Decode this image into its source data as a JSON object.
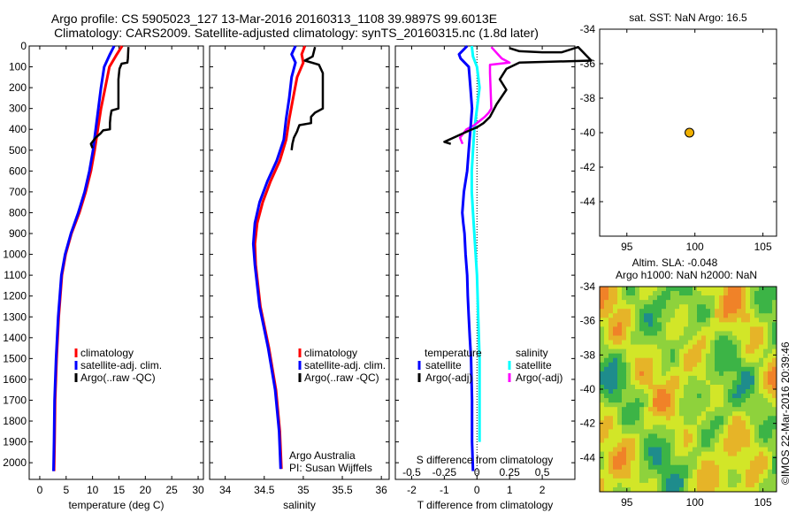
{
  "header": {
    "line1": "Argo profile: CS 5905023_127 13-Mar-2016 20160313_1108 39.9897S 99.6013E",
    "line2": "Climatology: CARS2009. Satellite-adjusted climatology: synTS_20160315.nc (1.8d later)"
  },
  "colors": {
    "climatology": "#ff0000",
    "satellite": "#0000ff",
    "argo": "#000000",
    "sal_satellite": "#00ffff",
    "sal_argo": "#ff00ff"
  },
  "chart_data": [
    {
      "type": "line",
      "xlabel": "temperature (deg C)",
      "xlim": [
        -2,
        31
      ],
      "xticks": [
        0,
        5,
        10,
        15,
        20,
        25,
        30
      ],
      "ylim": [
        2080,
        0
      ],
      "yticks": [
        0,
        100,
        200,
        300,
        400,
        500,
        600,
        700,
        800,
        900,
        1000,
        1100,
        1200,
        1300,
        1400,
        1500,
        1600,
        1700,
        1800,
        1900,
        2000
      ],
      "legend": [
        "climatology",
        "satellite-adj. clim.",
        "Argo(..raw -QC)"
      ],
      "series": [
        {
          "name": "climatology",
          "x": [
            15.6,
            14.6,
            13.2,
            12.4,
            11.6,
            11.0,
            10.4,
            9.7,
            8.7,
            7.5,
            6.0,
            4.9,
            4.2,
            3.6,
            3.2,
            2.9,
            2.8,
            2.7
          ],
          "y": [
            0,
            40,
            100,
            200,
            300,
            400,
            500,
            600,
            700,
            800,
            900,
            1000,
            1100,
            1300,
            1500,
            1700,
            1900,
            2040
          ]
        },
        {
          "name": "satellite-adj. clim.",
          "x": [
            14.1,
            13.3,
            12.2,
            11.6,
            11.1,
            10.6,
            10.1,
            9.4,
            8.5,
            7.3,
            5.9,
            4.8,
            4.1,
            3.5,
            3.1,
            2.8,
            2.7,
            2.6
          ],
          "y": [
            0,
            40,
            100,
            200,
            300,
            400,
            500,
            600,
            700,
            800,
            900,
            1000,
            1100,
            1300,
            1500,
            1700,
            1900,
            2040
          ]
        },
        {
          "name": "Argo(..raw -QC)",
          "x": [
            16.8,
            16.7,
            16.6,
            15.5,
            15.1,
            14.9,
            14.9,
            13.6,
            13.4,
            13.3,
            13.3,
            12.0,
            11.5,
            10.6,
            9.7,
            10.0
          ],
          "y": [
            5,
            60,
            80,
            85,
            110,
            160,
            300,
            310,
            340,
            370,
            400,
            405,
            420,
            440,
            470,
            490
          ]
        }
      ]
    },
    {
      "type": "line",
      "xlabel": "salinity",
      "xlim": [
        33.8,
        36.1
      ],
      "xticks": [
        34,
        34.5,
        35,
        35.5,
        36
      ],
      "xticklabels": [
        "34",
        "34.5",
        "35",
        "35.5",
        "36"
      ],
      "ylim": [
        2080,
        0
      ],
      "legend": [
        "climatology",
        "satellite-adj. clim.",
        "Argo(..raw -QC)"
      ],
      "annotation": [
        "Argo Australia",
        "PI: Susan Wijffels"
      ],
      "series": [
        {
          "name": "climatology",
          "x": [
            35.02,
            34.98,
            35.0,
            34.92,
            34.87,
            34.82,
            34.78,
            34.7,
            34.58,
            34.48,
            34.41,
            34.38,
            34.39,
            34.45,
            34.56,
            34.65,
            34.7,
            34.72
          ],
          "y": [
            0,
            40,
            80,
            150,
            250,
            350,
            450,
            550,
            650,
            750,
            850,
            950,
            1050,
            1250,
            1450,
            1650,
            1850,
            2030
          ]
        },
        {
          "name": "satellite-adj. clim.",
          "x": [
            34.9,
            34.85,
            34.9,
            34.85,
            34.82,
            34.78,
            34.75,
            34.66,
            34.54,
            34.44,
            34.38,
            34.36,
            34.38,
            34.44,
            34.55,
            34.64,
            34.69,
            34.71
          ],
          "y": [
            0,
            40,
            80,
            150,
            250,
            350,
            450,
            550,
            650,
            750,
            850,
            950,
            1050,
            1250,
            1450,
            1650,
            1850,
            2030
          ]
        },
        {
          "name": "Argo(..raw -QC)",
          "x": [
            35.15,
            35.12,
            35.02,
            35.2,
            35.25,
            35.25,
            35.15,
            35.1,
            35.1,
            34.95,
            34.93,
            34.92,
            34.88,
            34.86,
            34.85
          ],
          "y": [
            5,
            50,
            70,
            90,
            130,
            300,
            320,
            340,
            370,
            380,
            400,
            410,
            440,
            470,
            500
          ]
        }
      ]
    },
    {
      "type": "line",
      "xlabel": "T difference from climatology",
      "secondary_xlabel": "S difference from climatology",
      "xlim": [
        -2.5,
        3.0
      ],
      "xticks": [
        -2,
        -1,
        0,
        1,
        2
      ],
      "secondary_xticks": [
        -0.5,
        -0.25,
        0,
        0.25,
        0.5
      ],
      "secondary_xlim": [
        -0.625,
        0.75
      ],
      "ylim": [
        2080,
        0
      ],
      "legend_left": {
        "title": "temperature",
        "items": [
          "satellite",
          "Argo(-adj)"
        ]
      },
      "legend_right": {
        "title": "salinity",
        "items": [
          "satellite",
          "Argo(-adj)"
        ]
      },
      "series": [
        {
          "name": "temperature satellite",
          "x": [
            -0.3,
            -0.55,
            -0.5,
            -0.25,
            -0.2,
            -0.15,
            -0.2,
            -0.25,
            -0.3,
            -0.4,
            -0.45,
            -0.42,
            -0.38,
            -0.35,
            -0.3,
            -0.28,
            -0.25,
            -0.22,
            -0.18,
            -0.15,
            -0.15,
            -0.12
          ],
          "y": [
            0,
            40,
            60,
            100,
            200,
            300,
            400,
            500,
            600,
            700,
            800,
            850,
            900,
            1000,
            1100,
            1200,
            1300,
            1400,
            1500,
            1700,
            1900,
            2040
          ]
        },
        {
          "name": "temperature Argo(-adj)",
          "x": [
            1.0,
            1.3,
            2.0,
            2.6,
            3.1,
            3.5,
            1.3,
            0.9,
            0.7,
            0.9,
            0.6,
            0.4,
            0.2,
            0.0,
            -0.3,
            -1.0,
            -0.8
          ],
          "y": [
            10,
            25,
            30,
            30,
            5,
            70,
            80,
            110,
            160,
            210,
            280,
            340,
            370,
            390,
            410,
            460,
            470
          ]
        },
        {
          "name": "salinity satellite",
          "x": [
            -0.04,
            -0.03,
            0.0,
            0.02,
            0.0,
            -0.02,
            -0.03,
            -0.04,
            -0.04,
            -0.03,
            -0.02,
            -0.01,
            0.0,
            0.01,
            0.02,
            0.02
          ],
          "y": [
            0,
            50,
            100,
            200,
            300,
            400,
            500,
            600,
            700,
            800,
            900,
            1000,
            1100,
            1300,
            1500,
            1900
          ]
        },
        {
          "name": "salinity Argo(-adj)",
          "x": [
            0.11,
            0.19,
            0.25,
            0.1,
            0.1,
            0.11,
            0.09,
            0.06,
            -0.02,
            -0.08,
            -0.13,
            -0.11
          ],
          "y": [
            5,
            60,
            80,
            90,
            130,
            300,
            320,
            340,
            380,
            400,
            440,
            470
          ]
        }
      ]
    },
    {
      "type": "scatter",
      "title": "sat. SST: NaN Argo: 16.5",
      "xlim": [
        93,
        106
      ],
      "ylim": [
        -46,
        -34
      ],
      "xticks": [
        95,
        100,
        105
      ],
      "yticks": [
        -34,
        -36,
        -38,
        -40,
        -42,
        -44
      ],
      "x": [
        99.6
      ],
      "y": [
        -40.0
      ],
      "marker_color": "#f0b000"
    },
    {
      "type": "heatmap",
      "title": "Altim. SLA: -0.048",
      "subtitle": "Argo h1000: NaN h2000: NaN",
      "xlim": [
        93,
        106
      ],
      "ylim": [
        -46,
        -34
      ],
      "xticks": [
        95,
        100,
        105
      ],
      "yticks": [
        -34,
        -36,
        -38,
        -40,
        -42,
        -44
      ],
      "colormap": [
        "#1e8c8c",
        "#3cb446",
        "#8ed23c",
        "#d2e628",
        "#e6b428",
        "#f08228"
      ]
    }
  ],
  "footer": {
    "credit": "©IMOS 22-Mar-2016 20:39:46"
  }
}
